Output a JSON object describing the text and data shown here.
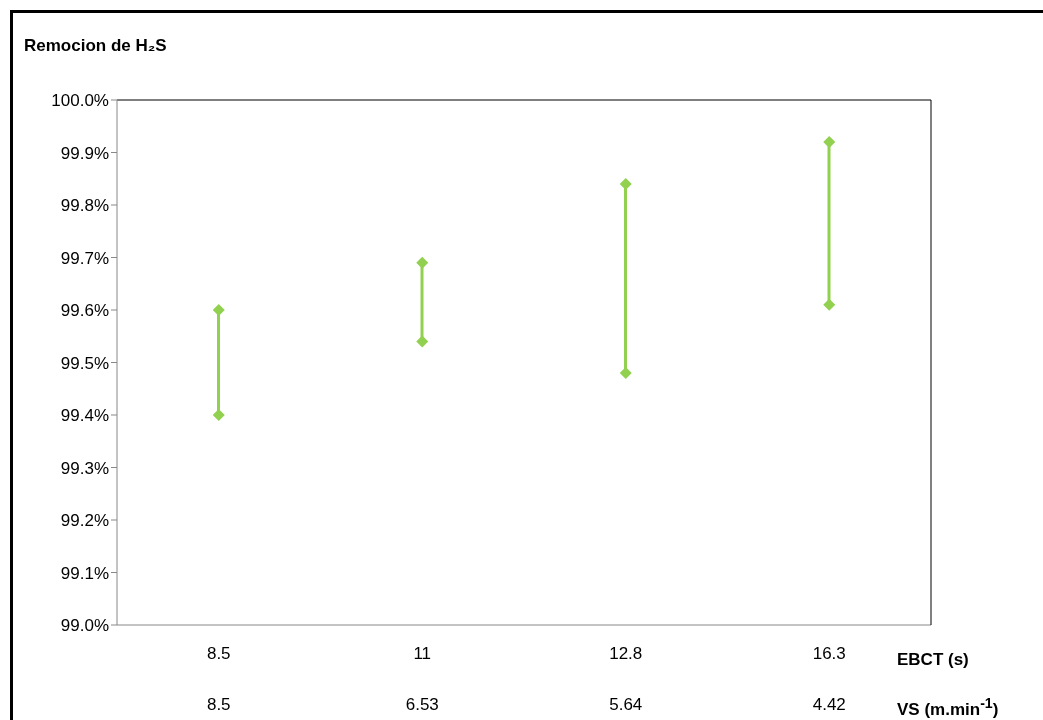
{
  "chart_data": {
    "type": "bar",
    "title": "Remocion de H₂S",
    "xlabel": "EBCT (s)",
    "categories": [
      "8.5",
      "11",
      "12.8",
      "16.3"
    ],
    "series": [
      {
        "color": "#92d050",
        "base": [
          99.4,
          99.54,
          99.48,
          99.61
        ],
        "values": [
          0.2,
          0.15,
          0.36,
          0.31
        ]
      },
      {
        "type": "scatter",
        "color": "#92d050",
        "values": [
          99.6,
          99.69,
          99.84,
          99.92
        ]
      },
      {
        "type": "scatter",
        "color": "#92d050",
        "values": [
          99.4,
          99.54,
          99.48,
          99.61
        ]
      }
    ],
    "marker": "diamond",
    "ylim": [
      99,
      100
    ],
    "yticks": [
      {
        "value": 99,
        "label": "99.0%"
      },
      {
        "value": 99.1,
        "label": "99.1%"
      },
      {
        "value": 99.2,
        "label": "99.2%"
      },
      {
        "value": 99.3,
        "label": "99.3%"
      },
      {
        "value": 99.4,
        "label": "99.4%"
      },
      {
        "value": 99.5,
        "label": "99.5%"
      },
      {
        "value": 99.6,
        "label": "99.6%"
      },
      {
        "value": 99.7,
        "label": "99.7%"
      },
      {
        "value": 99.8,
        "label": "99.8%"
      },
      {
        "value": 99.9,
        "label": "99.9%"
      },
      {
        "value": 100,
        "label": "100.0%"
      }
    ],
    "grid": false,
    "legend": false,
    "annotations": [
      "VS (m.min$^{-1}$)",
      "8.5",
      "6.53",
      "5.64",
      "4.42"
    ]
  }
}
